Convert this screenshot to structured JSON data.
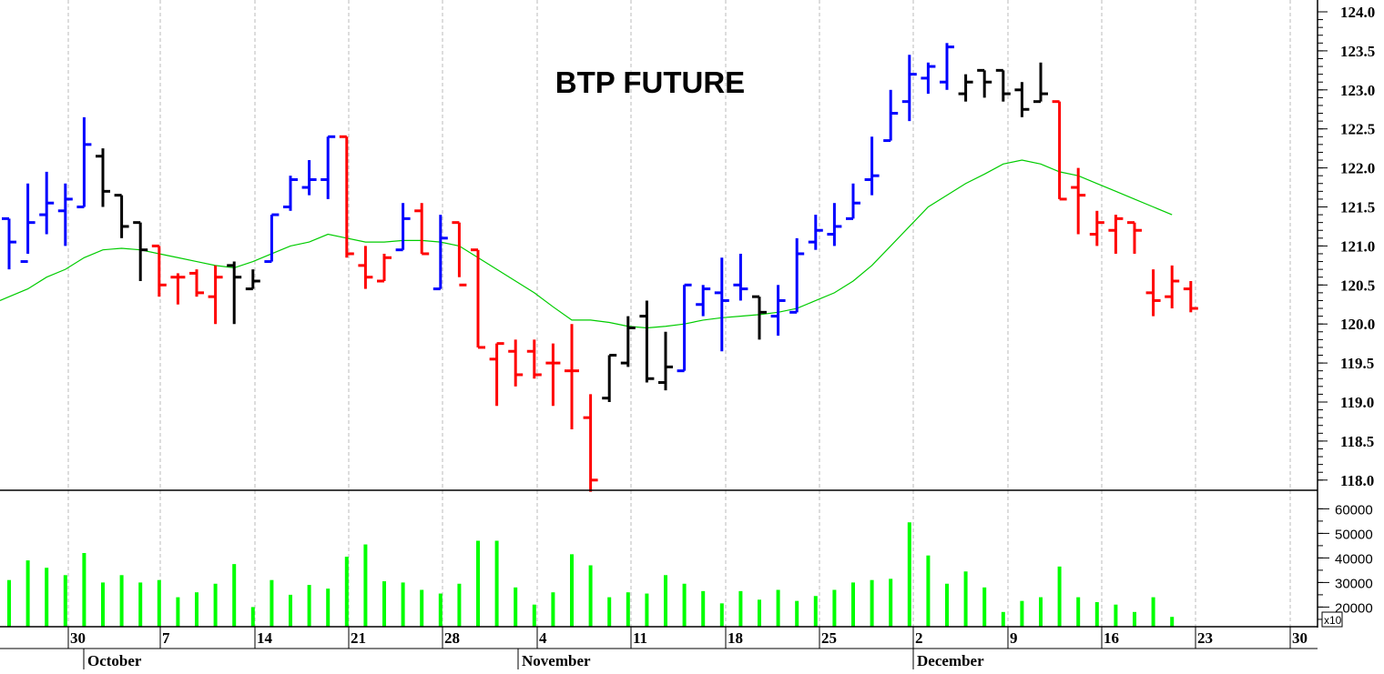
{
  "title": "BTP FUTURE",
  "colors": {
    "up": "#0000ff",
    "down": "#ff0000",
    "neutral": "#000000",
    "moving_average": "#00cc00",
    "volume": "#00ff00",
    "grid": "#bbbbbb",
    "axis": "#000000"
  },
  "price_axis": {
    "min": 118.0,
    "max": 124.0,
    "ticks": [
      "124.0",
      "123.5",
      "123.0",
      "122.5",
      "122.0",
      "121.5",
      "121.0",
      "120.5",
      "120.0",
      "119.5",
      "119.0",
      "118.5",
      "118.0"
    ]
  },
  "volume_axis": {
    "ticks": [
      "60000",
      "50000",
      "40000",
      "30000",
      "20000"
    ],
    "multiplier_label": "x10"
  },
  "date_axis": {
    "days": [
      "30",
      "7",
      "14",
      "21",
      "28",
      "4",
      "11",
      "18",
      "25",
      "2",
      "9",
      "16",
      "23",
      "30"
    ],
    "months": [
      "October",
      "November",
      "December"
    ]
  },
  "chart_data": [
    {
      "type": "ohlc",
      "title": "BTP FUTURE",
      "xlabel": "",
      "ylabel": "",
      "ylim": [
        118.0,
        124.0
      ],
      "grid": "vertical dashed weekly",
      "x_tick_labels": [
        "30",
        "7",
        "14",
        "21",
        "28",
        "4",
        "11",
        "18",
        "25",
        "2",
        "9",
        "16",
        "23",
        "30"
      ],
      "month_labels": [
        "October",
        "November",
        "December"
      ],
      "bars": [
        {
          "o": 121.35,
          "h": 121.35,
          "l": 120.7,
          "c": 121.05,
          "color": "up"
        },
        {
          "o": 120.8,
          "h": 121.8,
          "l": 120.9,
          "c": 121.3,
          "color": "up"
        },
        {
          "o": 121.4,
          "h": 121.95,
          "l": 121.15,
          "c": 121.55,
          "color": "up"
        },
        {
          "o": 121.45,
          "h": 121.8,
          "l": 121.0,
          "c": 121.6,
          "color": "up"
        },
        {
          "o": 121.5,
          "h": 122.65,
          "l": 121.5,
          "c": 122.3,
          "color": "up"
        },
        {
          "o": 122.15,
          "h": 122.25,
          "l": 121.5,
          "c": 121.7,
          "color": "neutral"
        },
        {
          "o": 121.65,
          "h": 121.65,
          "l": 121.1,
          "c": 121.25,
          "color": "neutral"
        },
        {
          "o": 121.3,
          "h": 121.3,
          "l": 120.55,
          "c": 120.95,
          "color": "neutral"
        },
        {
          "o": 121.0,
          "h": 121.0,
          "l": 120.35,
          "c": 120.5,
          "color": "down"
        },
        {
          "o": 120.6,
          "h": 120.65,
          "l": 120.25,
          "c": 120.6,
          "color": "down"
        },
        {
          "o": 120.65,
          "h": 120.7,
          "l": 120.35,
          "c": 120.4,
          "color": "down"
        },
        {
          "o": 120.35,
          "h": 120.75,
          "l": 120.0,
          "c": 120.6,
          "color": "down"
        },
        {
          "o": 120.75,
          "h": 120.8,
          "l": 120.0,
          "c": 120.6,
          "color": "neutral"
        },
        {
          "o": 120.45,
          "h": 120.7,
          "l": 120.45,
          "c": 120.55,
          "color": "neutral"
        },
        {
          "o": 120.8,
          "h": 121.4,
          "l": 120.8,
          "c": 121.4,
          "color": "up"
        },
        {
          "o": 121.5,
          "h": 121.9,
          "l": 121.45,
          "c": 121.85,
          "color": "up"
        },
        {
          "o": 121.75,
          "h": 122.1,
          "l": 121.65,
          "c": 121.85,
          "color": "up"
        },
        {
          "o": 121.85,
          "h": 122.4,
          "l": 121.6,
          "c": 122.4,
          "color": "up"
        },
        {
          "o": 122.4,
          "h": 122.4,
          "l": 120.85,
          "c": 120.9,
          "color": "down"
        },
        {
          "o": 120.75,
          "h": 121.0,
          "l": 120.45,
          "c": 120.6,
          "color": "down"
        },
        {
          "o": 120.55,
          "h": 120.9,
          "l": 120.55,
          "c": 120.85,
          "color": "down"
        },
        {
          "o": 120.95,
          "h": 121.55,
          "l": 120.95,
          "c": 121.35,
          "color": "up"
        },
        {
          "o": 121.45,
          "h": 121.55,
          "l": 120.9,
          "c": 120.9,
          "color": "down"
        },
        {
          "o": 120.45,
          "h": 121.4,
          "l": 120.45,
          "c": 121.1,
          "color": "up"
        },
        {
          "o": 121.3,
          "h": 121.3,
          "l": 120.6,
          "c": 120.5,
          "color": "down"
        },
        {
          "o": 120.95,
          "h": 120.95,
          "l": 119.7,
          "c": 119.7,
          "color": "down"
        },
        {
          "o": 119.55,
          "h": 119.75,
          "l": 118.95,
          "c": 119.75,
          "color": "down"
        },
        {
          "o": 119.65,
          "h": 119.8,
          "l": 119.2,
          "c": 119.35,
          "color": "down"
        },
        {
          "o": 119.65,
          "h": 119.8,
          "l": 119.3,
          "c": 119.35,
          "color": "down"
        },
        {
          "o": 119.5,
          "h": 119.75,
          "l": 118.95,
          "c": 119.5,
          "color": "down"
        },
        {
          "o": 119.4,
          "h": 120.0,
          "l": 118.65,
          "c": 119.4,
          "color": "down"
        },
        {
          "o": 118.8,
          "h": 119.1,
          "l": 117.85,
          "c": 118.0,
          "color": "down"
        },
        {
          "o": 119.05,
          "h": 119.6,
          "l": 119.0,
          "c": 119.6,
          "color": "neutral"
        },
        {
          "o": 119.5,
          "h": 120.1,
          "l": 119.45,
          "c": 119.95,
          "color": "neutral"
        },
        {
          "o": 120.1,
          "h": 120.3,
          "l": 119.25,
          "c": 119.3,
          "color": "neutral"
        },
        {
          "o": 119.25,
          "h": 119.9,
          "l": 119.15,
          "c": 119.45,
          "color": "neutral"
        },
        {
          "o": 119.4,
          "h": 120.5,
          "l": 119.4,
          "c": 120.5,
          "color": "up"
        },
        {
          "o": 120.25,
          "h": 120.5,
          "l": 120.1,
          "c": 120.45,
          "color": "up"
        },
        {
          "o": 120.4,
          "h": 120.85,
          "l": 119.65,
          "c": 120.3,
          "color": "up"
        },
        {
          "o": 120.5,
          "h": 120.9,
          "l": 120.3,
          "c": 120.45,
          "color": "up"
        },
        {
          "o": 120.35,
          "h": 120.35,
          "l": 119.8,
          "c": 120.15,
          "color": "neutral"
        },
        {
          "o": 120.1,
          "h": 120.5,
          "l": 119.85,
          "c": 120.3,
          "color": "up"
        },
        {
          "o": 120.15,
          "h": 121.1,
          "l": 120.15,
          "c": 120.9,
          "color": "up"
        },
        {
          "o": 121.05,
          "h": 121.4,
          "l": 120.95,
          "c": 121.2,
          "color": "up"
        },
        {
          "o": 121.15,
          "h": 121.55,
          "l": 121.0,
          "c": 121.25,
          "color": "up"
        },
        {
          "o": 121.35,
          "h": 121.8,
          "l": 121.35,
          "c": 121.55,
          "color": "up"
        },
        {
          "o": 121.85,
          "h": 122.4,
          "l": 121.65,
          "c": 121.9,
          "color": "up"
        },
        {
          "o": 122.35,
          "h": 123.0,
          "l": 122.35,
          "c": 122.7,
          "color": "up"
        },
        {
          "o": 122.85,
          "h": 123.45,
          "l": 122.6,
          "c": 123.2,
          "color": "up"
        },
        {
          "o": 123.15,
          "h": 123.35,
          "l": 122.95,
          "c": 123.3,
          "color": "up"
        },
        {
          "o": 123.1,
          "h": 123.6,
          "l": 123.0,
          "c": 123.55,
          "color": "up"
        },
        {
          "o": 122.95,
          "h": 123.2,
          "l": 122.85,
          "c": 123.1,
          "color": "neutral"
        },
        {
          "o": 123.25,
          "h": 123.25,
          "l": 122.9,
          "c": 123.1,
          "color": "neutral"
        },
        {
          "o": 123.25,
          "h": 123.25,
          "l": 122.85,
          "c": 122.95,
          "color": "neutral"
        },
        {
          "o": 123.0,
          "h": 123.1,
          "l": 122.65,
          "c": 122.75,
          "color": "neutral"
        },
        {
          "o": 122.85,
          "h": 123.35,
          "l": 122.85,
          "c": 122.95,
          "color": "neutral"
        },
        {
          "o": 122.85,
          "h": 122.85,
          "l": 121.6,
          "c": 121.6,
          "color": "down"
        },
        {
          "o": 121.75,
          "h": 122.0,
          "l": 121.15,
          "c": 121.65,
          "color": "down"
        },
        {
          "o": 121.15,
          "h": 121.45,
          "l": 121.0,
          "c": 121.3,
          "color": "down"
        },
        {
          "o": 121.2,
          "h": 121.4,
          "l": 120.9,
          "c": 121.35,
          "color": "down"
        },
        {
          "o": 121.3,
          "h": 121.3,
          "l": 120.9,
          "c": 121.2,
          "color": "down"
        },
        {
          "o": 120.4,
          "h": 120.7,
          "l": 120.1,
          "c": 120.3,
          "color": "down"
        },
        {
          "o": 120.35,
          "h": 120.75,
          "l": 120.2,
          "c": 120.55,
          "color": "down"
        },
        {
          "o": 120.45,
          "h": 120.55,
          "l": 120.15,
          "c": 120.2,
          "color": "down"
        }
      ],
      "moving_average": [
        120.35,
        120.45,
        120.6,
        120.7,
        120.85,
        120.95,
        120.97,
        120.95,
        120.9,
        120.85,
        120.8,
        120.75,
        120.72,
        120.8,
        120.9,
        121.0,
        121.05,
        121.15,
        121.1,
        121.05,
        121.05,
        121.07,
        121.07,
        121.05,
        121.0,
        120.85,
        120.7,
        120.55,
        120.4,
        120.22,
        120.05,
        120.05,
        120.02,
        119.97,
        119.95,
        119.97,
        120.0,
        120.05,
        120.08,
        120.1,
        120.12,
        120.15,
        120.2,
        120.3,
        120.4,
        120.55,
        120.75,
        121.0,
        121.25,
        121.5,
        121.65,
        121.8,
        121.92,
        122.05,
        122.1,
        122.05,
        121.95,
        121.9,
        121.8,
        121.7,
        121.6,
        121.5,
        121.4
      ]
    },
    {
      "type": "bar",
      "title": "Volume",
      "ylabel": "x10",
      "ylim": [
        12000,
        62000
      ],
      "values": [
        31000,
        39000,
        36000,
        33000,
        42000,
        30000,
        33000,
        30000,
        31000,
        24000,
        26000,
        29500,
        37500,
        20000,
        31000,
        25000,
        29000,
        27500,
        40500,
        45500,
        30500,
        30000,
        27000,
        25500,
        29500,
        47000,
        47000,
        28000,
        21000,
        26000,
        41500,
        37000,
        24000,
        26000,
        25500,
        33000,
        29500,
        26500,
        21500,
        26500,
        23000,
        27000,
        22500,
        24500,
        27000,
        30000,
        31000,
        31500,
        54500,
        41000,
        29500,
        34500,
        28000,
        18000,
        22500,
        24000,
        36500,
        24000,
        22000,
        21000,
        18000,
        24000,
        16000,
        12000
      ]
    }
  ]
}
